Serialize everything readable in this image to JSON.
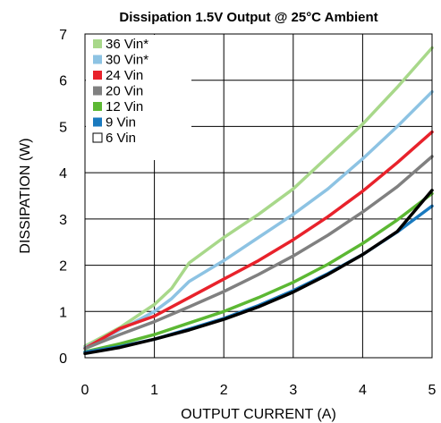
{
  "chart_data": {
    "type": "line",
    "title": "Dissipation 1.5V Output @ 25°C Ambient",
    "xlabel": "OUTPUT CURRENT (A)",
    "ylabel": "DISSIPATION (W)",
    "xlim": [
      0,
      5
    ],
    "ylim": [
      0,
      7
    ],
    "xticks": [
      "0",
      "1",
      "2",
      "3",
      "4",
      "5"
    ],
    "yticks": [
      "0",
      "1",
      "2",
      "3",
      "4",
      "5",
      "6",
      "7"
    ],
    "grid": true,
    "legend_position": "top-left",
    "series": [
      {
        "name": "36 Vin*",
        "color": "#a8d88a",
        "x": [
          0,
          0.5,
          1.0,
          1.25,
          1.5,
          2.0,
          2.5,
          3.0,
          3.5,
          4.0,
          4.5,
          5.0
        ],
        "y": [
          0.25,
          0.65,
          1.15,
          1.5,
          2.05,
          2.6,
          3.1,
          3.65,
          4.35,
          5.05,
          5.85,
          6.7
        ]
      },
      {
        "name": "30 Vin*",
        "color": "#8dc3e3",
        "x": [
          0,
          0.5,
          1.0,
          1.25,
          1.5,
          2.0,
          2.5,
          3.0,
          3.5,
          4.0,
          4.5,
          5.0
        ],
        "y": [
          0.22,
          0.6,
          1.0,
          1.28,
          1.65,
          2.1,
          2.6,
          3.1,
          3.65,
          4.3,
          5.0,
          5.75
        ]
      },
      {
        "name": "24 Vin",
        "color": "#e8222b",
        "x": [
          0,
          0.5,
          1.0,
          1.5,
          2.0,
          2.5,
          3.0,
          3.5,
          4.0,
          4.5,
          5.0
        ],
        "y": [
          0.2,
          0.63,
          0.9,
          1.3,
          1.7,
          2.1,
          2.55,
          3.05,
          3.6,
          4.22,
          4.88
        ]
      },
      {
        "name": "20 Vin",
        "color": "#808080",
        "x": [
          0,
          0.5,
          1.0,
          1.5,
          2.0,
          2.5,
          3.0,
          3.5,
          4.0,
          4.5,
          5.0
        ],
        "y": [
          0.2,
          0.5,
          0.78,
          1.1,
          1.43,
          1.8,
          2.2,
          2.65,
          3.15,
          3.7,
          4.35
        ]
      },
      {
        "name": "12 Vin",
        "color": "#5cb833",
        "x": [
          0,
          0.5,
          1.0,
          1.5,
          2.0,
          2.5,
          3.0,
          3.5,
          4.0,
          4.5,
          5.0
        ],
        "y": [
          0.13,
          0.3,
          0.5,
          0.75,
          1.0,
          1.3,
          1.63,
          2.02,
          2.47,
          2.98,
          3.55
        ]
      },
      {
        "name": "9 Vin",
        "color": "#1a7abf",
        "x": [
          0,
          0.5,
          1.0,
          1.5,
          2.0,
          2.5,
          3.0,
          3.5,
          4.0,
          4.5,
          5.0
        ],
        "y": [
          0.12,
          0.24,
          0.4,
          0.62,
          0.85,
          1.13,
          1.45,
          1.82,
          2.23,
          2.72,
          3.28
        ]
      },
      {
        "name": "6 Vin",
        "color": "#000000",
        "legend_hollow": true,
        "x": [
          0,
          0.5,
          1.0,
          1.5,
          2.0,
          2.5,
          3.0,
          3.5,
          4.0,
          4.5,
          5.0
        ],
        "y": [
          0.09,
          0.22,
          0.4,
          0.6,
          0.83,
          1.1,
          1.42,
          1.8,
          2.23,
          2.73,
          3.62
        ]
      }
    ]
  }
}
